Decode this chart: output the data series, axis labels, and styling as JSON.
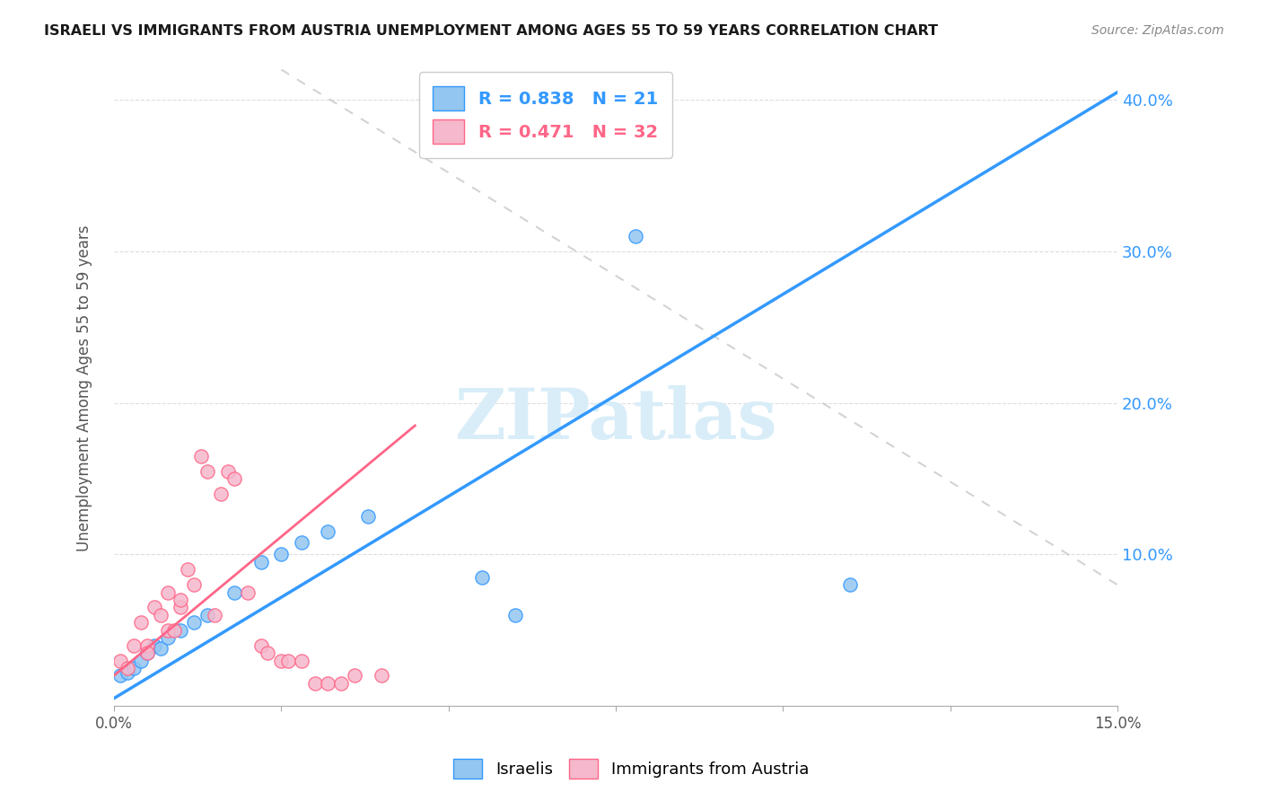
{
  "title": "ISRAELI VS IMMIGRANTS FROM AUSTRIA UNEMPLOYMENT AMONG AGES 55 TO 59 YEARS CORRELATION CHART",
  "source": "Source: ZipAtlas.com",
  "ylabel": "Unemployment Among Ages 55 to 59 years",
  "xlim": [
    0.0,
    0.15
  ],
  "ylim": [
    0.0,
    0.42
  ],
  "xticks": [
    0.0,
    0.025,
    0.05,
    0.075,
    0.1,
    0.125,
    0.15
  ],
  "blue_scatter_x": [
    0.001,
    0.002,
    0.003,
    0.004,
    0.005,
    0.006,
    0.007,
    0.008,
    0.01,
    0.012,
    0.014,
    0.018,
    0.022,
    0.025,
    0.028,
    0.032,
    0.038,
    0.055,
    0.06,
    0.078,
    0.11
  ],
  "blue_scatter_y": [
    0.02,
    0.022,
    0.025,
    0.03,
    0.035,
    0.04,
    0.038,
    0.045,
    0.05,
    0.055,
    0.06,
    0.075,
    0.095,
    0.1,
    0.108,
    0.115,
    0.125,
    0.085,
    0.06,
    0.31,
    0.08
  ],
  "pink_scatter_x": [
    0.001,
    0.002,
    0.003,
    0.004,
    0.005,
    0.005,
    0.006,
    0.007,
    0.008,
    0.008,
    0.009,
    0.01,
    0.01,
    0.011,
    0.012,
    0.013,
    0.014,
    0.015,
    0.016,
    0.017,
    0.018,
    0.02,
    0.022,
    0.023,
    0.025,
    0.026,
    0.028,
    0.03,
    0.032,
    0.034,
    0.036,
    0.04
  ],
  "pink_scatter_y": [
    0.03,
    0.025,
    0.04,
    0.055,
    0.04,
    0.035,
    0.065,
    0.06,
    0.075,
    0.05,
    0.05,
    0.065,
    0.07,
    0.09,
    0.08,
    0.165,
    0.155,
    0.06,
    0.14,
    0.155,
    0.15,
    0.075,
    0.04,
    0.035,
    0.03,
    0.03,
    0.03,
    0.015,
    0.015,
    0.015,
    0.02,
    0.02
  ],
  "blue_color": "#93c6f0",
  "pink_color": "#f5b8cc",
  "blue_line_color": "#3399ff",
  "pink_line_color": "#ff6688",
  "diagonal_color": "#c8c8c8",
  "watermark_color": "#d8edf8",
  "legend_r_blue": "0.838",
  "legend_n_blue": "21",
  "legend_r_pink": "0.471",
  "legend_n_pink": "32",
  "right_axis_color": "#3399ff",
  "right_ytick_labels": [
    "10.0%",
    "20.0%",
    "30.0%",
    "40.0%"
  ],
  "right_ytick_positions": [
    0.1,
    0.2,
    0.3,
    0.4
  ],
  "blue_line_x": [
    0.0,
    0.15
  ],
  "blue_line_y": [
    0.005,
    0.405
  ],
  "pink_line_x": [
    0.0,
    0.045
  ],
  "pink_line_y": [
    0.02,
    0.185
  ]
}
